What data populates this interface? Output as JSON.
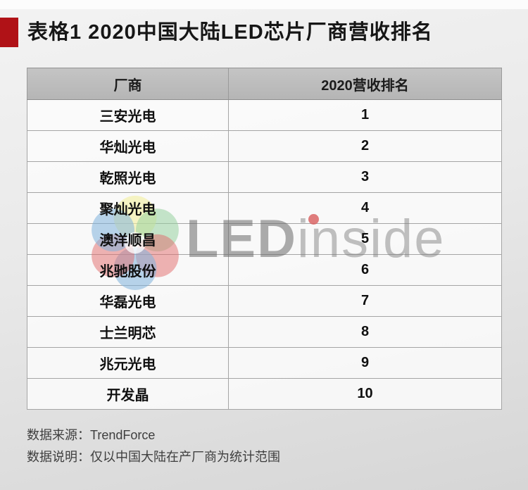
{
  "title": {
    "text": "表格1  2020中国大陆LED芯片厂商营收排名"
  },
  "chart_data": {
    "type": "table",
    "title": "表格1  2020中国大陆LED芯片厂商营收排名",
    "columns": [
      "厂商",
      "2020营收排名"
    ],
    "rows": [
      [
        "三安光电",
        "1"
      ],
      [
        "华灿光电",
        "2"
      ],
      [
        "乾照光电",
        "3"
      ],
      [
        "聚灿光电",
        "4"
      ],
      [
        "澳洋顺昌",
        "5"
      ],
      [
        "兆驰股份",
        "6"
      ],
      [
        "华磊光电",
        "7"
      ],
      [
        "士兰明芯",
        "8"
      ],
      [
        "兆元光电",
        "9"
      ],
      [
        "开发晶",
        "10"
      ]
    ],
    "legend": "none",
    "grid": "table borders"
  },
  "watermark": {
    "led": "LED",
    "inside": "inside"
  },
  "footer": {
    "source_line": "数据来源：TrendForce",
    "note_line": "数据说明：仅以中国大陆在产厂商为统计范围"
  },
  "colors": {
    "accent_red": "#b01217",
    "header_bg": "#bcbcbc",
    "row_bg": "#f7f7f7",
    "border": "#9a9a9a",
    "watermark_gray": "#8f8f8f",
    "logo_blue": "#7fb2dc",
    "logo_red": "#e16a6a",
    "logo_yellow": "#f2ee9d",
    "logo_green": "#97d1a0",
    "logo_teal": "#7fcbc4"
  }
}
